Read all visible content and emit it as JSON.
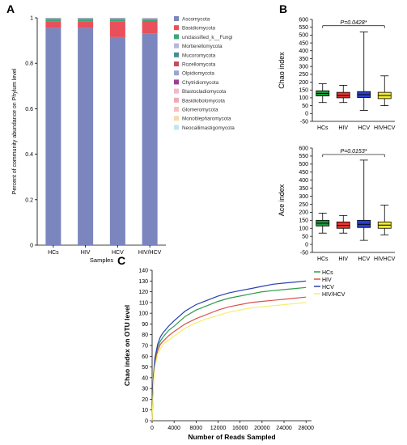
{
  "panel_labels": [
    "A",
    "B",
    "C"
  ],
  "chart_data": [
    {
      "type": "bar",
      "stacked": true,
      "categories": [
        "HCs",
        "HIV",
        "HCV",
        "HIV/HCV"
      ],
      "xlabel": "Samples",
      "ylabel": "Percent of community abundance on Phylum level",
      "ylim": [
        0,
        1
      ],
      "yticks": [
        "0",
        "0.2",
        "0.4",
        "0.6",
        "0.8",
        "1"
      ],
      "legend_placement": "right",
      "series": [
        {
          "name": "Ascomycota",
          "color": "#7b86bf",
          "values": [
            0.955,
            0.955,
            0.915,
            0.932
          ]
        },
        {
          "name": "Basidiomycota",
          "color": "#e8505b",
          "values": [
            0.03,
            0.03,
            0.068,
            0.052
          ]
        },
        {
          "name": "unclassified_k__Fungi",
          "color": "#3ea67a",
          "values": [
            0.01,
            0.01,
            0.012,
            0.01
          ]
        },
        {
          "name": "Mortierellomycota",
          "color": "#b7b6dc",
          "values": [
            0.002,
            0.002,
            0.002,
            0.002
          ]
        },
        {
          "name": "Mucoromycota",
          "color": "#4a8f8f",
          "values": [
            0.001,
            0.001,
            0.001,
            0.001
          ]
        },
        {
          "name": "Rozellomycota",
          "color": "#c94a5f",
          "values": [
            0.001,
            0.001,
            0.001,
            0.001
          ]
        },
        {
          "name": "Olpidiomycota",
          "color": "#9aa5d2",
          "values": [
            0.001,
            0.001,
            0.001,
            0.001
          ]
        },
        {
          "name": "Chytridiomycota",
          "color": "#9c3f8f",
          "values": [
            0,
            0,
            0,
            0
          ]
        },
        {
          "name": "Blastocladiomycota",
          "color": "#f3b8c9",
          "values": [
            0,
            0,
            0,
            0
          ]
        },
        {
          "name": "Basidiobolomycota",
          "color": "#f0a8b8",
          "values": [
            0,
            0,
            0,
            0
          ]
        },
        {
          "name": "Glomeromycota",
          "color": "#f7c0c0",
          "values": [
            0,
            0,
            0,
            0
          ]
        },
        {
          "name": "Monoblepharomycota",
          "color": "#f7d9b0",
          "values": [
            0,
            0,
            0,
            0
          ]
        },
        {
          "name": "Neocallimastigomycota",
          "color": "#bfe7ee",
          "values": [
            0,
            0,
            0,
            0
          ]
        }
      ]
    },
    {
      "type": "box",
      "categories": [
        "HCs",
        "HIV",
        "HCV",
        "HIV/HCV"
      ],
      "tick_labels": [
        "HCs",
        "HIV",
        "HCV",
        "HIVHCV"
      ],
      "ylabel": "Chao index",
      "ylim": [
        -50,
        600
      ],
      "yticks": [
        -50,
        0,
        50,
        100,
        150,
        200,
        250,
        300,
        350,
        400,
        450,
        500,
        550,
        600
      ],
      "annotation": "P=0.0428*",
      "boxes": [
        {
          "min": 70,
          "q1": 112,
          "median": 128,
          "q3": 145,
          "max": 190,
          "color": "#1a9b3a"
        },
        {
          "min": 70,
          "q1": 100,
          "median": 115,
          "q3": 135,
          "max": 180,
          "color": "#e8322f"
        },
        {
          "min": 20,
          "q1": 102,
          "median": 120,
          "q3": 140,
          "max": 520,
          "color": "#2a3fd0"
        },
        {
          "min": 50,
          "q1": 95,
          "median": 115,
          "q3": 135,
          "max": 240,
          "color": "#f2ec30"
        }
      ]
    },
    {
      "type": "box",
      "categories": [
        "HCs",
        "HIV",
        "HCV",
        "HIV/HCV"
      ],
      "tick_labels": [
        "HCs",
        "HIV",
        "HCV",
        "HIVHCV"
      ],
      "ylabel": "Ace index",
      "ylim": [
        -50,
        600
      ],
      "yticks": [
        -50,
        0,
        50,
        100,
        150,
        200,
        250,
        300,
        350,
        400,
        450,
        500,
        550,
        600
      ],
      "annotation": "P=0.0153*",
      "boxes": [
        {
          "min": 70,
          "q1": 115,
          "median": 132,
          "q3": 150,
          "max": 195,
          "color": "#1a9b3a"
        },
        {
          "min": 70,
          "q1": 100,
          "median": 118,
          "q3": 140,
          "max": 180,
          "color": "#e8322f"
        },
        {
          "min": 25,
          "q1": 105,
          "median": 125,
          "q3": 150,
          "max": 525,
          "color": "#2a3fd0"
        },
        {
          "min": 60,
          "q1": 100,
          "median": 120,
          "q3": 140,
          "max": 245,
          "color": "#f2ec30"
        }
      ]
    },
    {
      "type": "line",
      "xlabel": "Number of Reads Sampled",
      "ylabel": "Chao index on OTU level",
      "xlim": [
        0,
        29000
      ],
      "ylim": [
        0,
        140
      ],
      "xticks": [
        0,
        4000,
        8000,
        12000,
        16000,
        20000,
        24000,
        28000
      ],
      "yticks": [
        0,
        10,
        20,
        30,
        40,
        50,
        60,
        70,
        80,
        90,
        100,
        110,
        120,
        130,
        140
      ],
      "legend_placement": "top-right",
      "x": [
        0,
        250,
        500,
        1000,
        1500,
        2000,
        3000,
        4000,
        6000,
        8000,
        10000,
        12000,
        14000,
        16000,
        18000,
        20000,
        22000,
        24000,
        26000,
        28000
      ],
      "series": [
        {
          "name": "HCs",
          "color": "#2e9b4a",
          "values": [
            0,
            40,
            55,
            68,
            74,
            78,
            84,
            88,
            97,
            103,
            107,
            111,
            114,
            116,
            118,
            120,
            121,
            122,
            123,
            124
          ]
        },
        {
          "name": "HIV",
          "color": "#d9534f",
          "values": [
            0,
            38,
            52,
            65,
            71,
            74,
            79,
            83,
            90,
            95,
            99,
            103,
            106,
            108,
            110,
            111,
            112,
            113,
            114,
            115
          ]
        },
        {
          "name": "HCV",
          "color": "#2a3fb0",
          "values": [
            0,
            42,
            58,
            71,
            78,
            82,
            88,
            93,
            102,
            108,
            112,
            116,
            119,
            121,
            123,
            125,
            127,
            128,
            129,
            130
          ]
        },
        {
          "name": "HIV/HCV",
          "color": "#f3ef6b",
          "values": [
            0,
            36,
            50,
            62,
            67,
            71,
            75,
            79,
            86,
            91,
            95,
            98,
            101,
            103,
            105,
            106,
            107,
            108,
            109,
            110
          ]
        }
      ]
    }
  ]
}
